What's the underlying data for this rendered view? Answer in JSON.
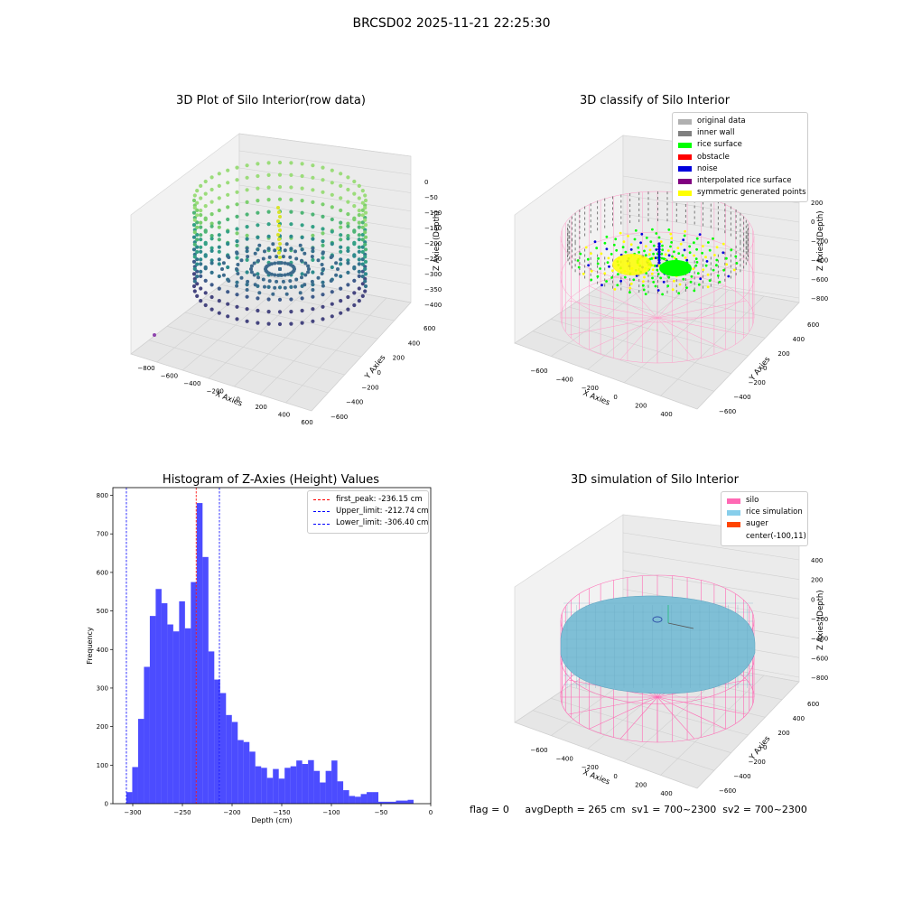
{
  "suptitle": "BRCSD02 2025-11-21 22:25:30",
  "panels": {
    "raw": {
      "title": "3D Plot of Silo Interior(row data)",
      "xlabel": "X Axies",
      "ylabel": "Y Axies",
      "zlabel": "Z Axies (Depth)",
      "x_ticks": [
        "-800",
        "-600",
        "-400",
        "-200",
        "0",
        "200",
        "400",
        "600"
      ],
      "y_ticks": [
        "-600",
        "-400",
        "-200",
        "0",
        "200",
        "400",
        "600"
      ],
      "z_ticks": [
        "0",
        "-50",
        "-100",
        "-150",
        "-200",
        "-250",
        "-300",
        "-350",
        "-400"
      ]
    },
    "classify": {
      "title": "3D classify of Silo Interior",
      "xlabel": "X Axies",
      "ylabel": "Y Axies",
      "zlabel": "Z Axies (Depth)",
      "x_ticks": [
        "-600",
        "-400",
        "-200",
        "0",
        "200",
        "400"
      ],
      "y_ticks": [
        "-600",
        "-400",
        "-200",
        "0",
        "200",
        "400",
        "600"
      ],
      "z_ticks": [
        "200",
        "0",
        "-200",
        "-400",
        "-600",
        "-800"
      ],
      "legend": [
        {
          "label": "original data",
          "color": "#b0b0b0"
        },
        {
          "label": "inner wall",
          "color": "#808080"
        },
        {
          "label": "rice surface",
          "color": "#00ff00"
        },
        {
          "label": "obstacle",
          "color": "#ff0000"
        },
        {
          "label": "noise",
          "color": "#0000dd"
        },
        {
          "label": "interpolated rice surface",
          "color": "#800080"
        },
        {
          "label": "symmetric generated points",
          "color": "#ffff00"
        }
      ]
    },
    "simulation": {
      "title": "3D simulation of Silo Interior",
      "xlabel": "X Axies",
      "ylabel": "Y Axies",
      "zlabel": "Z Axies (Depth)",
      "x_ticks": [
        "-600",
        "-400",
        "-200",
        "0",
        "200",
        "400"
      ],
      "y_ticks": [
        "-600",
        "-400",
        "-200",
        "0",
        "200",
        "400",
        "600"
      ],
      "z_ticks": [
        "400",
        "200",
        "0",
        "-200",
        "-400",
        "-600",
        "-800"
      ],
      "legend": [
        {
          "label": "silo",
          "color": "#ff69b4"
        },
        {
          "label": "rice simulation",
          "color": "#87ceeb"
        },
        {
          "label": "auger",
          "color": "#ff4500"
        },
        {
          "label": "center(-100,11)",
          "color": ""
        }
      ]
    }
  },
  "footer": "flag = 0     avgDepth = 265 cm  sv1 = 700~2300  sv2 = 700~2300",
  "chart_data": [
    {
      "type": "bar",
      "title": "Histogram of Z-Axies (Height) Values",
      "xlabel": "Depth (cm)",
      "ylabel": "Frequency",
      "xlim": [
        -320,
        0
      ],
      "ylim": [
        0,
        820
      ],
      "x_ticks": [
        -300,
        -250,
        -200,
        -150,
        -100,
        -50,
        0
      ],
      "y_ticks": [
        0,
        100,
        200,
        300,
        400,
        500,
        600,
        700,
        800
      ],
      "bar_color": "#0000ff",
      "bins": {
        "start": -306.4,
        "width": 5.9,
        "values": [
          30,
          95,
          220,
          355,
          487,
          557,
          520,
          465,
          447,
          525,
          455,
          575,
          780,
          640,
          395,
          322,
          287,
          230,
          212,
          165,
          160,
          135,
          97,
          93,
          67,
          90,
          65,
          93,
          97,
          112,
          103,
          113,
          85,
          55,
          85,
          112,
          58,
          35,
          20,
          18,
          25,
          30,
          30,
          5,
          5,
          5,
          8,
          8,
          10
        ]
      },
      "vlines": [
        {
          "label": "first_peak: -236.15 cm",
          "x": -236.15,
          "color": "#ff0000"
        },
        {
          "label": "Upper_limit: -212.74 cm",
          "x": -212.74,
          "color": "#0000ff"
        },
        {
          "label": "Lower_limit: -306.40 cm",
          "x": -306.4,
          "color": "#0000ff"
        }
      ],
      "legend_position": "upper right"
    }
  ]
}
